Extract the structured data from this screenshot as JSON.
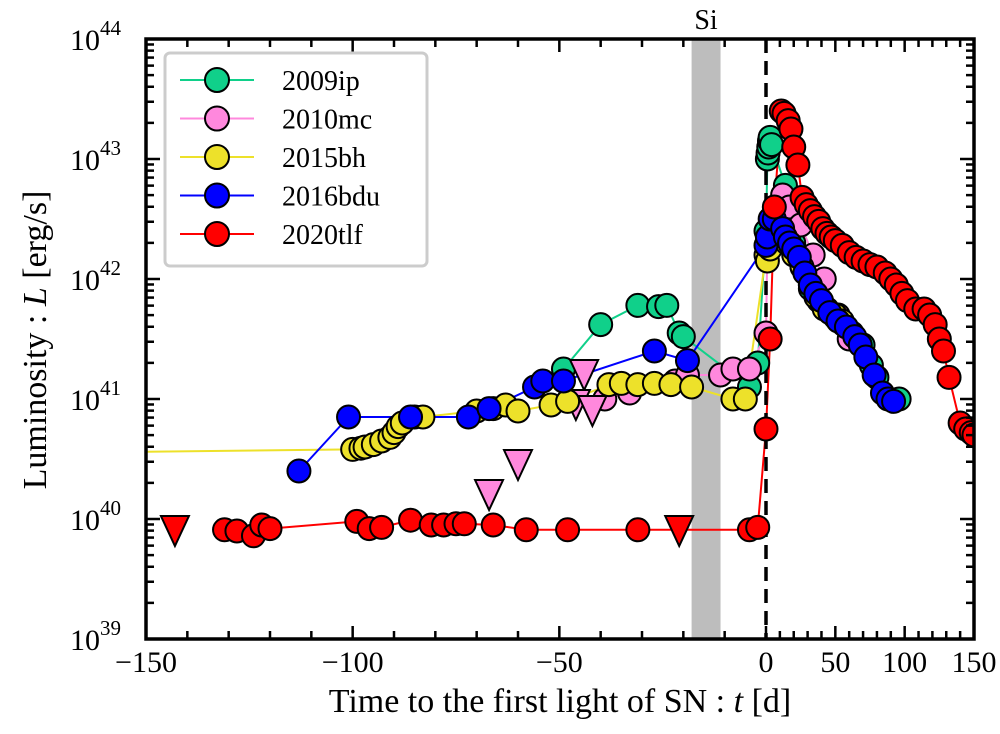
{
  "chart_data": {
    "type": "scatter",
    "title": "",
    "xlabel": "Time to the first light of SN : t [d]",
    "ylabel": "Luminosity : L [erg/s]",
    "xlabel_parts": [
      "Time to the first light of SN : ",
      "t",
      " [d]"
    ],
    "ylabel_parts": [
      "Luminosity : ",
      "L",
      " [erg/s]"
    ],
    "x_scale": "piecewise-linear (negative side expanded, positive side compressed)",
    "y_scale": "log",
    "xlim": [
      -150,
      150
    ],
    "ylim": [
      1e+39,
      1e+44
    ],
    "x_ticks": [
      {
        "value": -150,
        "label": "−150"
      },
      {
        "value": -100,
        "label": "−100"
      },
      {
        "value": -50,
        "label": "−50"
      },
      {
        "value": 0,
        "label": "0"
      },
      {
        "value": 50,
        "label": "50"
      },
      {
        "value": 100,
        "label": "100"
      },
      {
        "value": 150,
        "label": "150"
      }
    ],
    "y_ticks": [
      {
        "exp": 39,
        "base": "10",
        "sup": "39"
      },
      {
        "exp": 40,
        "base": "10",
        "sup": "40"
      },
      {
        "exp": 41,
        "base": "10",
        "sup": "41"
      },
      {
        "exp": 42,
        "base": "10",
        "sup": "42"
      },
      {
        "exp": 43,
        "base": "10",
        "sup": "43"
      },
      {
        "exp": 44,
        "base": "10",
        "sup": "44"
      }
    ],
    "grid": false,
    "legend_position": "top-left",
    "annotations": [
      {
        "type": "shaded-band",
        "label": "Si",
        "x_range": [
          -18,
          -11
        ],
        "color": "#bdbdbd"
      },
      {
        "type": "vline-dashed",
        "x": 0,
        "color": "#000000"
      }
    ],
    "series": [
      {
        "name": "2009ip",
        "color": "#10d08a",
        "line": true,
        "points": [
          [
            -49,
            41.25
          ],
          [
            -40,
            41.62
          ],
          [
            -31,
            41.78
          ],
          [
            -26,
            41.77
          ],
          [
            -24,
            41.78
          ],
          [
            -21,
            41.55
          ],
          [
            -20,
            41.52
          ],
          [
            -4,
            41.1
          ],
          [
            -2,
            41.3
          ],
          [
            0,
            42.4
          ],
          [
            1,
            43.0
          ],
          [
            1.5,
            43.05
          ],
          [
            2,
            43.1
          ],
          [
            2.5,
            43.15
          ],
          [
            3,
            43.18
          ],
          [
            4,
            43.12
          ],
          [
            14,
            42.78
          ],
          [
            16,
            42.6
          ],
          [
            20,
            42.3
          ],
          [
            26,
            42.1
          ],
          [
            32,
            41.92
          ],
          [
            38,
            41.82
          ],
          [
            44,
            41.75
          ],
          [
            50,
            41.68
          ],
          [
            56,
            41.62
          ],
          [
            62,
            41.55
          ],
          [
            70,
            41.45
          ],
          [
            76,
            41.28
          ],
          [
            80,
            41.18
          ],
          [
            96,
            41.0
          ]
        ],
        "upper_limits": []
      },
      {
        "name": "2010mc",
        "color": "#ff88dd",
        "line": true,
        "points": [
          [
            -39,
            41.0
          ],
          [
            -33,
            41.05
          ],
          [
            -22,
            41.15
          ],
          [
            -19,
            41.2
          ],
          [
            -11,
            41.2
          ],
          [
            -8,
            41.25
          ],
          [
            -4,
            41.25
          ],
          [
            0,
            41.55
          ],
          [
            1,
            42.3
          ],
          [
            12,
            42.7
          ],
          [
            17,
            42.6
          ],
          [
            25,
            42.45
          ],
          [
            34,
            42.2
          ],
          [
            42,
            42.0
          ],
          [
            52,
            41.7
          ],
          [
            60,
            41.5
          ]
        ],
        "upper_limits": [
          [
            -67,
            40.2
          ],
          [
            -60,
            40.45
          ],
          [
            -44,
            41.2
          ],
          [
            -46,
            40.95
          ],
          [
            -42,
            40.9
          ]
        ]
      },
      {
        "name": "2015bh",
        "color": "#ede12a",
        "line": true,
        "points": [
          [
            -300,
            40.5
          ],
          [
            -100,
            40.58
          ],
          [
            -98,
            40.59
          ],
          [
            -97,
            40.6
          ],
          [
            -95,
            40.62
          ],
          [
            -93,
            40.65
          ],
          [
            -91,
            40.68
          ],
          [
            -90,
            40.72
          ],
          [
            -89,
            40.77
          ],
          [
            -88,
            40.8
          ],
          [
            -85,
            40.85
          ],
          [
            -83,
            40.85
          ],
          [
            -70,
            40.9
          ],
          [
            -66,
            40.92
          ],
          [
            -63,
            40.95
          ],
          [
            -60,
            40.9
          ],
          [
            -52,
            40.95
          ],
          [
            -48,
            40.98
          ],
          [
            -38,
            41.12
          ],
          [
            -35,
            41.13
          ],
          [
            -31,
            41.12
          ],
          [
            -27,
            41.13
          ],
          [
            -23,
            41.12
          ],
          [
            -18,
            41.1
          ],
          [
            -8,
            41.0
          ],
          [
            -5,
            41.0
          ],
          [
            0,
            42.2
          ],
          [
            1,
            42.15
          ],
          [
            3,
            42.25
          ],
          [
            10,
            42.4
          ],
          [
            15,
            42.3
          ],
          [
            20,
            42.2
          ],
          [
            26,
            42.1
          ],
          [
            32,
            41.95
          ],
          [
            36,
            41.85
          ],
          [
            42,
            41.75
          ],
          [
            50,
            41.7
          ],
          [
            55,
            41.65
          ]
        ],
        "upper_limits": []
      },
      {
        "name": "2016bdu",
        "color": "#0000ff",
        "line": true,
        "points": [
          [
            -113,
            40.4
          ],
          [
            -101,
            40.85
          ],
          [
            -86,
            40.85
          ],
          [
            -72,
            40.85
          ],
          [
            -67,
            40.92
          ],
          [
            -56,
            41.1
          ],
          [
            -54,
            41.15
          ],
          [
            -49,
            41.15
          ],
          [
            -27,
            41.4
          ],
          [
            -19,
            41.32
          ],
          [
            0,
            42.28
          ],
          [
            1,
            42.35
          ],
          [
            3,
            42.5
          ],
          [
            6,
            42.5
          ],
          [
            12,
            42.42
          ],
          [
            14,
            42.35
          ],
          [
            17,
            42.3
          ],
          [
            20,
            42.25
          ],
          [
            24,
            42.18
          ],
          [
            28,
            42.05
          ],
          [
            32,
            41.95
          ],
          [
            36,
            41.88
          ],
          [
            40,
            41.82
          ],
          [
            46,
            41.72
          ],
          [
            52,
            41.65
          ],
          [
            58,
            41.6
          ],
          [
            64,
            41.52
          ],
          [
            68,
            41.45
          ],
          [
            72,
            41.35
          ],
          [
            78,
            41.2
          ],
          [
            84,
            41.05
          ],
          [
            88,
            41.0
          ],
          [
            92,
            40.98
          ]
        ],
        "upper_limits": []
      },
      {
        "name": "2020tlf",
        "color": "#ff0000",
        "line": true,
        "points": [
          [
            -131,
            39.91
          ],
          [
            -128,
            39.9
          ],
          [
            -124,
            39.86
          ],
          [
            -122,
            39.95
          ],
          [
            -120,
            39.92
          ],
          [
            -99,
            39.98
          ],
          [
            -96,
            39.92
          ],
          [
            -93,
            39.93
          ],
          [
            -86,
            39.99
          ],
          [
            -81,
            39.95
          ],
          [
            -78,
            39.95
          ],
          [
            -75,
            39.96
          ],
          [
            -73,
            39.96
          ],
          [
            -66,
            39.95
          ],
          [
            -58,
            39.91
          ],
          [
            -48,
            39.91
          ],
          [
            -31,
            39.91
          ],
          [
            -4,
            39.91
          ],
          [
            -2,
            39.93
          ],
          [
            0,
            40.75
          ],
          [
            3,
            41.5
          ],
          [
            6,
            42.6
          ],
          [
            11,
            43.4
          ],
          [
            13,
            43.38
          ],
          [
            16,
            43.32
          ],
          [
            18,
            43.25
          ],
          [
            20,
            43.1
          ],
          [
            23,
            42.95
          ],
          [
            26,
            42.68
          ],
          [
            29,
            42.62
          ],
          [
            32,
            42.57
          ],
          [
            35,
            42.52
          ],
          [
            38,
            42.48
          ],
          [
            41,
            42.42
          ],
          [
            44,
            42.38
          ],
          [
            47,
            42.35
          ],
          [
            50,
            42.32
          ],
          [
            55,
            42.28
          ],
          [
            60,
            42.22
          ],
          [
            65,
            42.18
          ],
          [
            70,
            42.15
          ],
          [
            75,
            42.12
          ],
          [
            80,
            42.1
          ],
          [
            86,
            42.05
          ],
          [
            90,
            42.0
          ],
          [
            94,
            41.95
          ],
          [
            98,
            41.88
          ],
          [
            102,
            41.82
          ],
          [
            108,
            41.75
          ],
          [
            114,
            41.75
          ],
          [
            118,
            41.7
          ],
          [
            122,
            41.62
          ],
          [
            125,
            41.5
          ],
          [
            128,
            41.4
          ],
          [
            132,
            41.18
          ],
          [
            140,
            40.8
          ],
          [
            144,
            40.75
          ],
          [
            148,
            40.72
          ],
          [
            150,
            40.7
          ]
        ],
        "upper_limits": [
          [
            -143,
            39.9
          ],
          [
            -21,
            39.9
          ]
        ]
      }
    ]
  },
  "legend": {
    "items": [
      {
        "label": "2009ip",
        "color": "#10d08a"
      },
      {
        "label": "2010mc",
        "color": "#ff88dd"
      },
      {
        "label": "2015bh",
        "color": "#ede12a"
      },
      {
        "label": "2016bdu",
        "color": "#0000ff"
      },
      {
        "label": "2020tlf",
        "color": "#ff0000"
      }
    ]
  },
  "annotation_si": "Si"
}
